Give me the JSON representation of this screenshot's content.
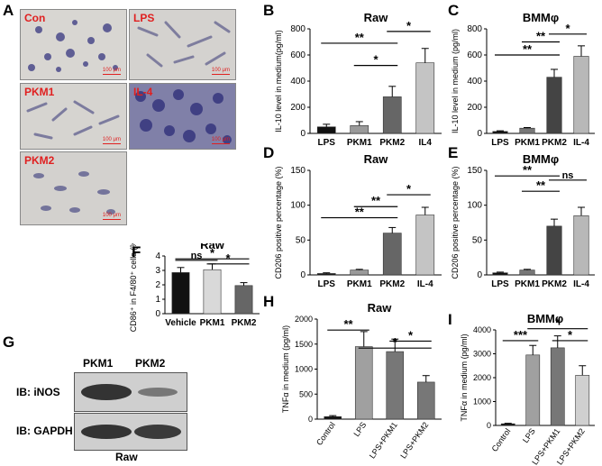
{
  "figure": {
    "panel_labels": [
      "A",
      "B",
      "C",
      "D",
      "E",
      "F",
      "G",
      "H",
      "I"
    ],
    "micrographs": [
      {
        "label": "Con",
        "scale": "100 μm"
      },
      {
        "label": "LPS",
        "scale": "100 μm"
      },
      {
        "label": "PKM1",
        "scale": "100 μm"
      },
      {
        "label": "IL-4",
        "scale": "100 μm"
      },
      {
        "label": "PKM2",
        "scale": "100 μm"
      }
    ],
    "western": {
      "lanes": [
        "PKM1",
        "PKM2"
      ],
      "rows": [
        "IB: iNOS",
        "IB: GAPDH"
      ],
      "cell_line": "Raw"
    }
  },
  "chart_data": [
    {
      "id": "B",
      "type": "bar",
      "title": "Raw",
      "ylabel": "IL-10 level in medium(pg/ml)",
      "categories": [
        "LPS",
        "PKM1",
        "PKM2",
        "IL4"
      ],
      "values": [
        50,
        60,
        280,
        540
      ],
      "errors": [
        20,
        30,
        80,
        110
      ],
      "colors": [
        "#111111",
        "#9a9a9a",
        "#666666",
        "#c4c4c4"
      ],
      "ylim": [
        0,
        800
      ],
      "yticks": [
        0,
        200,
        400,
        600,
        800
      ],
      "sig": [
        {
          "from": 0,
          "to": 2,
          "label": "**",
          "y": 690
        },
        {
          "from": 1,
          "to": 2,
          "label": "*",
          "y": 520
        },
        {
          "from": 2,
          "to": 3,
          "label": "*",
          "y": 780
        }
      ]
    },
    {
      "id": "C",
      "type": "bar",
      "title": "BMMφ",
      "ylabel": "IL-10 level in medium (pg/ml)",
      "categories": [
        "LPS",
        "PKM1",
        "PKM2",
        "IL-4"
      ],
      "values": [
        15,
        40,
        430,
        590
      ],
      "errors": [
        5,
        5,
        60,
        80
      ],
      "colors": [
        "#111111",
        "#777777",
        "#444444",
        "#b8b8b8"
      ],
      "ylim": [
        0,
        800
      ],
      "yticks": [
        0,
        200,
        400,
        600,
        800
      ],
      "sig": [
        {
          "from": 0,
          "to": 2,
          "label": "**",
          "y": 600
        },
        {
          "from": 1,
          "to": 2,
          "label": "**",
          "y": 700
        },
        {
          "from": 2,
          "to": 3,
          "label": "*",
          "y": 760
        }
      ]
    },
    {
      "id": "D",
      "type": "bar",
      "title": "Raw",
      "ylabel": "CD206 positive percentage (%)",
      "categories": [
        "LPS",
        "PKM1",
        "PKM2",
        "IL-4"
      ],
      "values": [
        2,
        7,
        60,
        86
      ],
      "errors": [
        1,
        1,
        8,
        11
      ],
      "colors": [
        "#111111",
        "#9a9a9a",
        "#666666",
        "#c4c4c4"
      ],
      "ylim": [
        0,
        150
      ],
      "yticks": [
        0,
        50,
        100,
        150
      ],
      "sig": [
        {
          "from": 0,
          "to": 2,
          "label": "**",
          "y": 82
        },
        {
          "from": 1,
          "to": 2,
          "label": "**",
          "y": 98
        },
        {
          "from": 2,
          "to": 3,
          "label": "*",
          "y": 115
        }
      ]
    },
    {
      "id": "E",
      "type": "bar",
      "title": "BMMφ",
      "ylabel": "CD206 positive percentage (%)",
      "categories": [
        "LPS",
        "PKM1",
        "PKM2",
        "IL-4"
      ],
      "values": [
        3,
        7,
        70,
        85
      ],
      "errors": [
        1,
        1,
        10,
        12
      ],
      "colors": [
        "#111111",
        "#777777",
        "#444444",
        "#b8b8b8"
      ],
      "ylim": [
        0,
        150
      ],
      "yticks": [
        0,
        50,
        100,
        150
      ],
      "sig": [
        {
          "from": 0,
          "to": 2,
          "label": "**",
          "y": 142
        },
        {
          "from": 1,
          "to": 2,
          "label": "**",
          "y": 120
        },
        {
          "from": 2,
          "to": 3,
          "label": "ns",
          "y": 136
        }
      ]
    },
    {
      "id": "F",
      "type": "bar",
      "title": "Raw",
      "ylabel": "CD86⁺ in F4/80⁺ cells (%)",
      "categories": [
        "Vehicle",
        "PKM1",
        "PKM2"
      ],
      "values": [
        2.85,
        3.05,
        1.95
      ],
      "errors": [
        0.35,
        0.4,
        0.2
      ],
      "colors": [
        "#111111",
        "#d9d9d9",
        "#666666"
      ],
      "ylim": [
        0,
        4
      ],
      "yticks": [
        0,
        1,
        2,
        3,
        4
      ],
      "sig": [
        {
          "from": 0,
          "to": 1,
          "label": "ns",
          "y": 3.7
        },
        {
          "from": 0,
          "to": 2,
          "label": "*",
          "y": 3.8
        },
        {
          "from": 1,
          "to": 2,
          "label": "*",
          "y": 3.45
        }
      ]
    },
    {
      "id": "H",
      "type": "bar",
      "title": "Raw",
      "ylabel": "TNFα in medium (pg/ml)",
      "categories": [
        "Control",
        "LPS",
        "LPS+PKM1",
        "LPS+PKM2"
      ],
      "values": [
        50,
        1450,
        1350,
        740
      ],
      "errors": [
        20,
        300,
        250,
        130
      ],
      "colors": [
        "#111111",
        "#a0a0a0",
        "#777777",
        "#777777"
      ],
      "ylim": [
        0,
        2000
      ],
      "yticks": [
        0,
        500,
        1000,
        1500,
        2000
      ],
      "sig": [
        {
          "from": 0,
          "to": 1,
          "label": "**",
          "y": 1780
        },
        {
          "from": 1,
          "to": 3,
          "label": "*",
          "y": 1420
        },
        {
          "from": 2,
          "to": 3,
          "label": "*",
          "y": 1560
        }
      ]
    },
    {
      "id": "I",
      "type": "bar",
      "title": "BMMφ",
      "ylabel": "TNFα in medium (pg/ml)",
      "categories": [
        "Control",
        "LPS",
        "LPS+PKM1",
        "LPS+PKM2"
      ],
      "values": [
        70,
        2950,
        3250,
        2100
      ],
      "errors": [
        20,
        400,
        500,
        400
      ],
      "colors": [
        "#111111",
        "#a0a0a0",
        "#777777",
        "#d0d0d0"
      ],
      "ylim": [
        0,
        4000
      ],
      "yticks": [
        0,
        1000,
        2000,
        3000,
        4000
      ],
      "sig": [
        {
          "from": 0,
          "to": 1,
          "label": "***",
          "y": 3550
        },
        {
          "from": 1,
          "to": 3,
          "label": "*",
          "y": 4050
        },
        {
          "from": 2,
          "to": 3,
          "label": "*",
          "y": 3550
        }
      ]
    }
  ]
}
